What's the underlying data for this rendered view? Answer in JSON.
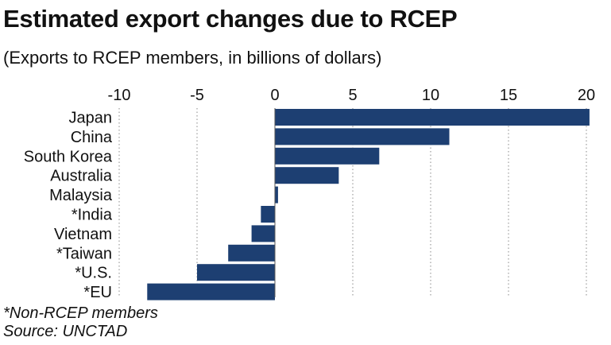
{
  "title": "Estimated export changes due to RCEP",
  "subtitle": "(Exports to RCEP members, in billions of dollars)",
  "note": "*Non-RCEP members",
  "source": "Source: UNCTAD",
  "chart_data": {
    "type": "bar",
    "orientation": "horizontal",
    "categories": [
      "Japan",
      "China",
      "South Korea",
      "Australia",
      "Malaysia",
      "*India",
      "Vietnam",
      "*Taiwan",
      "*U.S.",
      "*EU"
    ],
    "values": [
      20.2,
      11.2,
      6.7,
      4.1,
      0.2,
      -0.9,
      -1.5,
      -3.0,
      -5.0,
      -8.2
    ],
    "xlim": [
      -10,
      20
    ],
    "xticks": [
      "-10",
      "-5",
      "0",
      "5",
      "10",
      "15",
      "20"
    ],
    "tick_values": [
      -10,
      -5,
      0,
      5,
      10,
      15,
      20
    ],
    "grid": true,
    "bar_color": "#1d3f72",
    "grid_color": "#888888",
    "axis_color": "#555555"
  }
}
